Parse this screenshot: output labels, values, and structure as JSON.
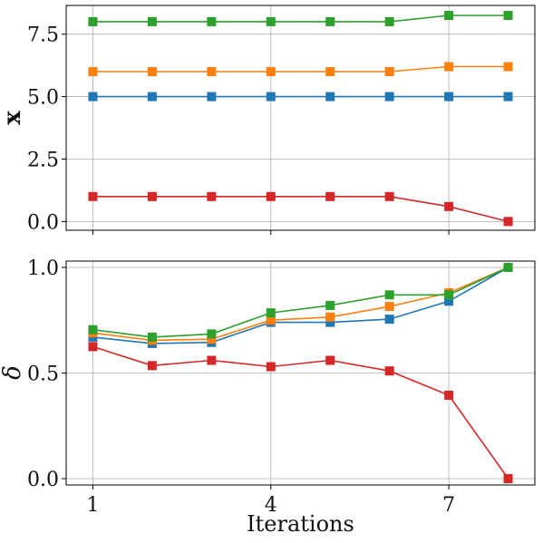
{
  "chart_data": [
    {
      "type": "line",
      "title": "",
      "xlabel": "",
      "ylabel": "x",
      "ylim": [
        -0.35,
        8.65
      ],
      "xlim": [
        0.55,
        8.45
      ],
      "yticks": [
        0.0,
        2.5,
        5.0,
        7.5
      ],
      "ytick_labels": [
        "0.0",
        "2.5",
        "5.0",
        "7.5"
      ],
      "xticks": [
        1,
        4,
        7
      ],
      "xtick_labels": [
        "",
        "",
        ""
      ],
      "grid": true,
      "marker": "square",
      "x": [
        1,
        2,
        3,
        4,
        5,
        6,
        7,
        8
      ],
      "series": [
        {
          "color": "#1f77b4",
          "values": [
            5.0,
            5.0,
            5.0,
            5.0,
            5.0,
            5.0,
            5.0,
            5.0
          ]
        },
        {
          "color": "#ff7f0e",
          "values": [
            6.0,
            6.0,
            6.0,
            6.0,
            6.0,
            6.0,
            6.2,
            6.2
          ]
        },
        {
          "color": "#2ca02c",
          "values": [
            8.0,
            8.0,
            8.0,
            8.0,
            8.0,
            8.0,
            8.25,
            8.25
          ]
        },
        {
          "color": "#d62728",
          "values": [
            1.0,
            1.0,
            1.0,
            1.0,
            1.0,
            1.0,
            0.6,
            0.0
          ]
        }
      ]
    },
    {
      "type": "line",
      "title": "",
      "xlabel": "Iterations",
      "ylabel": "δ",
      "ylim": [
        -0.03,
        1.03
      ],
      "xlim": [
        0.55,
        8.45
      ],
      "yticks": [
        0.0,
        0.5,
        1.0
      ],
      "ytick_labels": [
        "0.0",
        "0.5",
        "1.0"
      ],
      "xticks": [
        1,
        4,
        7
      ],
      "xtick_labels": [
        "1",
        "4",
        "7"
      ],
      "grid": true,
      "marker": "square",
      "x": [
        1,
        2,
        3,
        4,
        5,
        6,
        7,
        8
      ],
      "series": [
        {
          "color": "#1f77b4",
          "values": [
            0.67,
            0.64,
            0.645,
            0.74,
            0.74,
            0.755,
            0.84,
            1.0
          ]
        },
        {
          "color": "#ff7f0e",
          "values": [
            0.69,
            0.655,
            0.66,
            0.75,
            0.765,
            0.815,
            0.88,
            1.0
          ]
        },
        {
          "color": "#2ca02c",
          "values": [
            0.705,
            0.67,
            0.685,
            0.785,
            0.82,
            0.87,
            0.87,
            1.0
          ]
        },
        {
          "color": "#d62728",
          "values": [
            0.625,
            0.535,
            0.56,
            0.53,
            0.56,
            0.51,
            0.395,
            0.0
          ]
        }
      ]
    }
  ]
}
